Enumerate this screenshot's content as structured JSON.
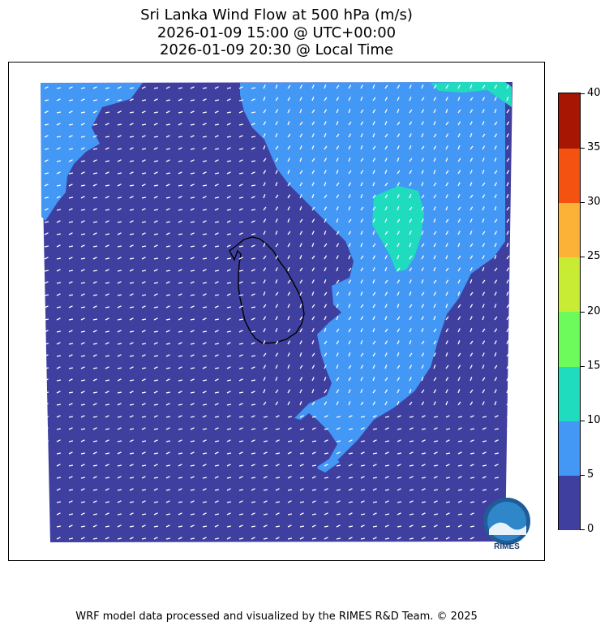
{
  "title": {
    "line1": "Sri Lanka Wind Flow at 500 hPa (m/s)",
    "line2": "2026-01-09 15:00 @ UTC+00:00",
    "line3": "2026-01-09 20:30 @ Local Time"
  },
  "colorbar": {
    "ticks": [
      "0",
      "5",
      "10",
      "15",
      "20",
      "25",
      "30",
      "35",
      "40"
    ],
    "colors": [
      "#3f3f9f",
      "#4397f5",
      "#1fdcbf",
      "#6cfb5a",
      "#c8ec33",
      "#fbb236",
      "#f35211",
      "#a71503"
    ]
  },
  "logo": {
    "text": "RIMES"
  },
  "footer": "WRF model data processed and visualized by the RIMES R&D Team. © 2025"
}
